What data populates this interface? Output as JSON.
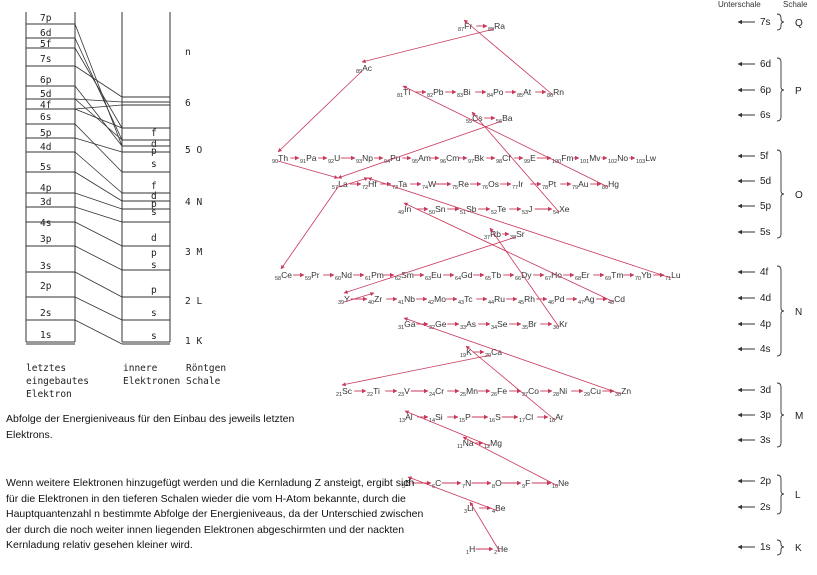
{
  "left_diagram": {
    "col_last": [
      "7p",
      "6d",
      "5f",
      "7s",
      "6p",
      "5d",
      "4f",
      "6s",
      "5p",
      "4d",
      "5s",
      "4p",
      "3d",
      "4s",
      "3p",
      "3s",
      "2p",
      "2s",
      "1s"
    ],
    "col_inner": [
      "f",
      "d",
      "p",
      "s",
      "f",
      "d",
      "p",
      "s",
      "d",
      "p",
      "s",
      "p",
      "s",
      "s"
    ],
    "shells": [
      "n",
      "6",
      "5 O",
      "4 N",
      "3 M",
      "2 L",
      "1 K"
    ],
    "labels": {
      "last_1": "letztes",
      "last_2": "eingebautes",
      "last_3": "Elektron",
      "inner_1": "innere",
      "inner_2": "Elektronen",
      "xray_1": "Röntgen",
      "xray_2": "Schale"
    }
  },
  "captions": {
    "cap1": "Abfolge der Energieniveaus für den Einbau des jeweils letzten Elektrons.",
    "cap2": "Wenn weitere Elektronen hinzugefügt werden und die Kernladung Z ansteigt, ergibt sich für die Elektronen in den tieferen Schalen wieder die vom H-Atom bekannte, durch die Hauptquantenzahl n bestimmte Abfolge der Energieniveaus, da der Unterschied zwischen der durch die noch weiter innen liegenden Elektronen abgeschirmten und der nackten Kernladung relativ gesehen kleiner wird."
  },
  "right_panel": {
    "header_subshell": "Unterschale",
    "header_shell": "Schale",
    "subshells": [
      "7s",
      "6d",
      "6p",
      "6s",
      "5f",
      "5d",
      "5p",
      "5s",
      "4f",
      "4d",
      "4p",
      "4s",
      "3d",
      "3p",
      "3s",
      "2p",
      "2s",
      "1s"
    ],
    "shells": [
      "Q",
      "P",
      "O",
      "N",
      "M",
      "L",
      "K"
    ]
  },
  "rows": [
    {
      "id": "7s",
      "els": [
        [
          "87",
          "Fr"
        ],
        [
          "88",
          "Ra"
        ]
      ]
    },
    {
      "id": "6d",
      "els": [
        [
          "89",
          "Ac"
        ]
      ]
    },
    {
      "id": "6p",
      "els": [
        [
          "81",
          "Tl"
        ],
        [
          "82",
          "Pb"
        ],
        [
          "83",
          "Bi"
        ],
        [
          "84",
          "Po"
        ],
        [
          "85",
          "At"
        ],
        [
          "86",
          "Rn"
        ]
      ]
    },
    {
      "id": "6s",
      "els": [
        [
          "55",
          "Cs"
        ],
        [
          "56",
          "Ba"
        ]
      ]
    },
    {
      "id": "5f",
      "els": [
        [
          "90",
          "Th"
        ],
        [
          "91",
          "Pa"
        ],
        [
          "92",
          "U"
        ],
        [
          "93",
          "Np"
        ],
        [
          "94",
          "Pu"
        ],
        [
          "95",
          "Am"
        ],
        [
          "96",
          "Cm"
        ],
        [
          "97",
          "Bk"
        ],
        [
          "98",
          "Cf"
        ],
        [
          "99",
          "E"
        ],
        [
          "100",
          "Fm"
        ],
        [
          "101",
          "Mv"
        ],
        [
          "102",
          "No"
        ],
        [
          "103",
          "Lw"
        ]
      ]
    },
    {
      "id": "5d",
      "els": [
        [
          "57",
          "La"
        ],
        [
          "72",
          "Hf"
        ],
        [
          "73",
          "Ta"
        ],
        [
          "74",
          "W"
        ],
        [
          "75",
          "Re"
        ],
        [
          "76",
          "Os"
        ],
        [
          "77",
          "Ir"
        ],
        [
          "78",
          "Pt"
        ],
        [
          "79",
          "Au"
        ],
        [
          "80",
          "Hg"
        ]
      ]
    },
    {
      "id": "5p",
      "els": [
        [
          "49",
          "In"
        ],
        [
          "50",
          "Sn"
        ],
        [
          "51",
          "Sb"
        ],
        [
          "52",
          "Te"
        ],
        [
          "53",
          "J"
        ],
        [
          "54",
          "Xe"
        ]
      ]
    },
    {
      "id": "5s",
      "els": [
        [
          "37",
          "Rb"
        ],
        [
          "38",
          "Sr"
        ]
      ]
    },
    {
      "id": "4f",
      "els": [
        [
          "58",
          "Ce"
        ],
        [
          "59",
          "Pr"
        ],
        [
          "60",
          "Nd"
        ],
        [
          "61",
          "Pm"
        ],
        [
          "62",
          "Sm"
        ],
        [
          "63",
          "Eu"
        ],
        [
          "64",
          "Gd"
        ],
        [
          "65",
          "Tb"
        ],
        [
          "66",
          "Dy"
        ],
        [
          "67",
          "Ho"
        ],
        [
          "68",
          "Er"
        ],
        [
          "69",
          "Tm"
        ],
        [
          "70",
          "Yb"
        ],
        [
          "71",
          "Lu"
        ]
      ]
    },
    {
      "id": "4d",
      "els": [
        [
          "39",
          "Y"
        ],
        [
          "40",
          "Zr"
        ],
        [
          "41",
          "Nb"
        ],
        [
          "42",
          "Mo"
        ],
        [
          "43",
          "Tc"
        ],
        [
          "44",
          "Ru"
        ],
        [
          "45",
          "Rh"
        ],
        [
          "46",
          "Pd"
        ],
        [
          "47",
          "Ag"
        ],
        [
          "48",
          "Cd"
        ]
      ]
    },
    {
      "id": "4p",
      "els": [
        [
          "31",
          "Ga"
        ],
        [
          "32",
          "Ge"
        ],
        [
          "33",
          "As"
        ],
        [
          "34",
          "Se"
        ],
        [
          "35",
          "Br"
        ],
        [
          "36",
          "Kr"
        ]
      ]
    },
    {
      "id": "4s",
      "els": [
        [
          "19",
          "K"
        ],
        [
          "20",
          "Ca"
        ]
      ]
    },
    {
      "id": "3d",
      "els": [
        [
          "21",
          "Sc"
        ],
        [
          "22",
          "Ti"
        ],
        [
          "23",
          "V"
        ],
        [
          "24",
          "Cr"
        ],
        [
          "25",
          "Mn"
        ],
        [
          "26",
          "Fe"
        ],
        [
          "27",
          "Co"
        ],
        [
          "28",
          "Ni"
        ],
        [
          "29",
          "Cu"
        ],
        [
          "30",
          "Zn"
        ]
      ]
    },
    {
      "id": "3p",
      "els": [
        [
          "13",
          "Al"
        ],
        [
          "14",
          "Si"
        ],
        [
          "15",
          "P"
        ],
        [
          "16",
          "S"
        ],
        [
          "17",
          "Cl"
        ],
        [
          "18",
          "Ar"
        ]
      ]
    },
    {
      "id": "3s",
      "els": [
        [
          "11",
          "Na"
        ],
        [
          "12",
          "Mg"
        ]
      ]
    },
    {
      "id": "2p",
      "els": [
        [
          "5",
          "B"
        ],
        [
          "6",
          "C"
        ],
        [
          "7",
          "N"
        ],
        [
          "8",
          "O"
        ],
        [
          "9",
          "F"
        ],
        [
          "10",
          "Ne"
        ]
      ]
    },
    {
      "id": "2s",
      "els": [
        [
          "3",
          "Li"
        ],
        [
          "4",
          "Be"
        ]
      ]
    },
    {
      "id": "1s",
      "els": [
        [
          "1",
          "H"
        ],
        [
          "2",
          "He"
        ]
      ]
    }
  ],
  "colors": {
    "arrow": "#c8385a",
    "text": "#222222",
    "lines": "#333333"
  }
}
